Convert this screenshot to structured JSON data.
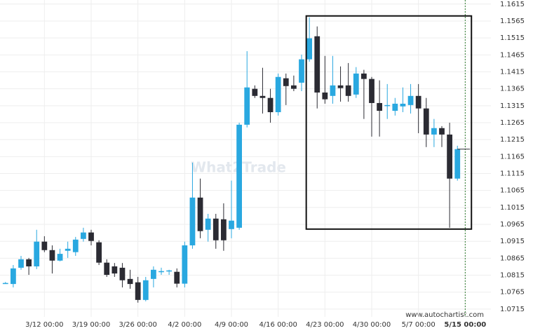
{
  "chart_data": {
    "type": "candlestick",
    "watermark": "What2Trade",
    "source": "www.autochartist.com",
    "up_color": "#29a8e0",
    "down_color": "#2b2b33",
    "x": [
      0,
      1,
      2,
      3,
      4,
      5,
      6,
      7,
      8,
      9,
      10,
      11,
      12,
      13,
      14,
      15,
      16,
      17,
      18,
      19,
      20,
      21,
      22,
      23,
      24,
      25,
      26,
      27,
      28,
      29,
      30,
      31,
      32,
      33,
      34,
      35,
      36,
      37,
      38,
      39,
      40,
      41,
      42,
      43,
      44,
      45,
      46,
      47,
      48,
      49,
      50,
      51,
      52,
      53,
      54,
      55,
      56,
      57,
      58
    ],
    "open": [
      1.0792,
      1.0789,
      1.0837,
      1.0862,
      1.0841,
      1.0914,
      1.0889,
      1.0858,
      1.0887,
      1.0883,
      1.0922,
      1.0941,
      1.0912,
      1.0852,
      1.0841,
      1.0837,
      1.0804,
      1.0794,
      1.0742,
      1.0804,
      1.0827,
      1.0827,
      1.0825,
      1.079,
      1.0903,
      1.1044,
      1.0949,
      1.0982,
      1.098,
      1.0951,
      1.0955,
      1.1259,
      1.1365,
      1.1344,
      1.1338,
      1.1296,
      1.1396,
      1.1375,
      1.1383,
      1.1452,
      1.152,
      1.1354,
      1.1344,
      1.1375,
      1.1375,
      1.1348,
      1.141,
      1.1394,
      1.1323,
      1.1317,
      1.13,
      1.1313,
      1.1317,
      1.1344,
      1.1307,
      1.123,
      1.1249,
      1.123,
      1.11
    ],
    "high": [
      1.0795,
      1.0845,
      1.0872,
      1.0866,
      1.0949,
      1.093,
      1.0903,
      1.0893,
      1.0914,
      1.0928,
      1.0955,
      1.0949,
      1.0918,
      1.0862,
      1.0851,
      1.0851,
      1.0831,
      1.081,
      1.081,
      1.0841,
      1.0837,
      1.0831,
      1.0835,
      1.0914,
      1.1147,
      1.11,
      1.0996,
      1.0996,
      1.1027,
      1.1094,
      1.1265,
      1.1476,
      1.1375,
      1.1427,
      1.1365,
      1.141,
      1.141,
      1.1404,
      1.1466,
      1.1576,
      1.1549,
      1.1462,
      1.1462,
      1.1431,
      1.1441,
      1.1429,
      1.1421,
      1.14,
      1.139,
      1.1379,
      1.1338,
      1.1369,
      1.1379,
      1.1379,
      1.1338,
      1.1276,
      1.1255,
      1.1265,
      1.1197
    ],
    "low": [
      1.079,
      1.0779,
      1.0831,
      1.0816,
      1.0833,
      1.0883,
      1.082,
      1.0856,
      1.0866,
      1.0872,
      1.0914,
      1.0903,
      1.0845,
      1.081,
      1.081,
      1.0779,
      1.0775,
      1.0734,
      1.0738,
      1.0779,
      1.0816,
      1.0816,
      1.0779,
      1.0779,
      1.0893,
      1.0924,
      1.0914,
      1.0893,
      1.0887,
      1.0924,
      1.0949,
      1.1251,
      1.1338,
      1.1292,
      1.1265,
      1.1286,
      1.1317,
      1.1358,
      1.1358,
      1.1445,
      1.1307,
      1.1321,
      1.1321,
      1.1327,
      1.1327,
      1.1338,
      1.1276,
      1.1224,
      1.1224,
      1.1276,
      1.1286,
      1.1296,
      1.1292,
      1.1234,
      1.1193,
      1.1193,
      1.1193,
      1.0955,
      1.1094
    ],
    "close": [
      1.0792,
      1.0835,
      1.0862,
      1.0841,
      1.0914,
      1.0889,
      1.0858,
      1.0878,
      1.0893,
      1.092,
      1.0941,
      1.0916,
      1.0852,
      1.0816,
      1.082,
      1.08,
      1.0789,
      1.0742,
      1.08,
      1.0831,
      1.0827,
      1.0829,
      1.079,
      1.0903,
      1.1044,
      1.0945,
      1.0982,
      1.0918,
      1.0918,
      1.0976,
      1.1259,
      1.1369,
      1.1344,
      1.1338,
      1.1296,
      1.14,
      1.1373,
      1.1365,
      1.1452,
      1.1514,
      1.1354,
      1.1334,
      1.1375,
      1.1367,
      1.1344,
      1.141,
      1.1394,
      1.1323,
      1.13,
      1.1317,
      1.1321,
      1.1321,
      1.1344,
      1.1307,
      1.123,
      1.1249,
      1.123,
      1.11,
      1.1187
    ],
    "pattern_box": {
      "x": [
        38.6,
        59.8
      ],
      "y": [
        1.0951,
        1.158
      ]
    },
    "xlim": [
      -0.7,
      62.3
    ],
    "xticks": [
      {
        "value": 5,
        "label": "3/12 00:00"
      },
      {
        "value": 11,
        "label": "3/19 00:00"
      },
      {
        "value": 17,
        "label": "3/26 00:00"
      },
      {
        "value": 23,
        "label": "4/2 00:00"
      },
      {
        "value": 29,
        "label": "4/9 00:00"
      },
      {
        "value": 35,
        "label": "4/16 00:00"
      },
      {
        "value": 41,
        "label": "4/23 00:00"
      },
      {
        "value": 47,
        "label": "4/30 00:00"
      },
      {
        "value": 53,
        "label": "5/7 00:00"
      },
      {
        "value": 59,
        "label": "5/15 00:00"
      }
    ],
    "ylim": [
      1.0692,
      1.1627
    ],
    "yticks": [
      1.0715,
      1.0765,
      1.0815,
      1.0865,
      1.0915,
      1.0965,
      1.1015,
      1.1065,
      1.1115,
      1.1165,
      1.1215,
      1.1265,
      1.1315,
      1.1365,
      1.1415,
      1.1465,
      1.1515,
      1.1565,
      1.1615
    ],
    "grid": true
  }
}
